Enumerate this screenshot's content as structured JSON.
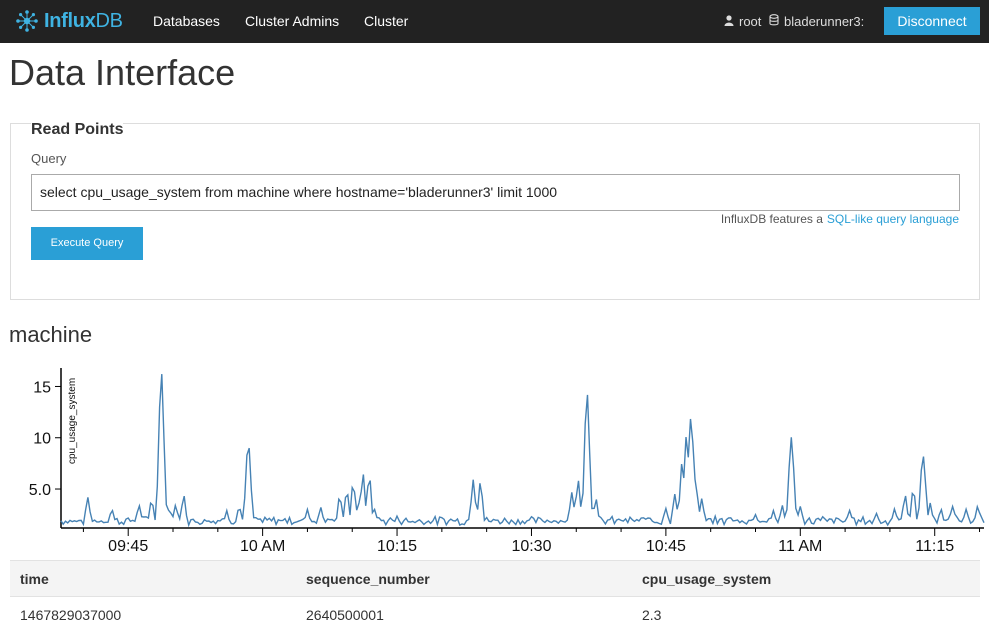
{
  "app": {
    "brand": "InfluxDB",
    "brand_bold": "Influx",
    "brand_light": "DB",
    "accent_color": "#2a9fd6"
  },
  "nav": {
    "links": [
      "Databases",
      "Cluster Admins",
      "Cluster"
    ],
    "user": "root",
    "user_icon": "user-icon",
    "database": "bladerunner3:",
    "database_icon": "database-icon",
    "disconnect_label": "Disconnect"
  },
  "page": {
    "title": "Data Interface"
  },
  "read_points": {
    "title": "Read Points",
    "query_label": "Query",
    "query_value": "select cpu_usage_system from machine where hostname='bladerunner3' limit 1000",
    "help_prefix": "InfluxDB features a",
    "help_link": "SQL-like query language",
    "execute_label": "Execute Query"
  },
  "series": {
    "name": "machine"
  },
  "chart_data": {
    "type": "line",
    "ylabel": "cpu_usage_system",
    "yticks": [
      "5.0",
      "10",
      "15"
    ],
    "ytick_values": [
      5,
      10,
      15
    ],
    "ylim": [
      1.2,
      16.8
    ],
    "xticks": [
      "09:45",
      "10 AM",
      "10:15",
      "10:30",
      "10:45",
      "11 AM",
      "11:15"
    ],
    "xtick_minutes": [
      585,
      600,
      615,
      630,
      645,
      660,
      675
    ],
    "xlim_minutes": [
      577.5,
      680.5
    ],
    "series_color": "#4682b4",
    "peaks": [
      {
        "t": 580.5,
        "v": 4.2
      },
      {
        "t": 583.2,
        "v": 3.0
      },
      {
        "t": 586.2,
        "v": 3.5
      },
      {
        "t": 587.6,
        "v": 4.0
      },
      {
        "t": 588.7,
        "v": 16.5
      },
      {
        "t": 589.6,
        "v": 3.0
      },
      {
        "t": 590.3,
        "v": 3.5
      },
      {
        "t": 591.2,
        "v": 4.3
      },
      {
        "t": 593.8,
        "v": 2.0
      },
      {
        "t": 596.0,
        "v": 2.8
      },
      {
        "t": 597.4,
        "v": 3.2
      },
      {
        "t": 598.4,
        "v": 9.4
      },
      {
        "t": 602.5,
        "v": 2.1
      },
      {
        "t": 605.0,
        "v": 3.0
      },
      {
        "t": 606.5,
        "v": 3.2
      },
      {
        "t": 607.3,
        "v": 2.2
      },
      {
        "t": 608.6,
        "v": 4.3
      },
      {
        "t": 609.4,
        "v": 4.8
      },
      {
        "t": 610.1,
        "v": 5.5
      },
      {
        "t": 610.7,
        "v": 3.8
      },
      {
        "t": 611.2,
        "v": 6.5
      },
      {
        "t": 611.9,
        "v": 6.3
      },
      {
        "t": 612.5,
        "v": 3.0
      },
      {
        "t": 615.0,
        "v": 2.4
      },
      {
        "t": 618.5,
        "v": 1.9
      },
      {
        "t": 621.0,
        "v": 2.1
      },
      {
        "t": 623.5,
        "v": 6.0
      },
      {
        "t": 624.3,
        "v": 5.7
      },
      {
        "t": 627.0,
        "v": 2.1
      },
      {
        "t": 630.0,
        "v": 1.9
      },
      {
        "t": 632.5,
        "v": 2.0
      },
      {
        "t": 634.5,
        "v": 4.8
      },
      {
        "t": 635.2,
        "v": 6.0
      },
      {
        "t": 636.2,
        "v": 14.5
      },
      {
        "t": 637.2,
        "v": 4.0
      },
      {
        "t": 640.0,
        "v": 2.0
      },
      {
        "t": 643.0,
        "v": 2.1
      },
      {
        "t": 645.0,
        "v": 3.2
      },
      {
        "t": 646.0,
        "v": 4.5
      },
      {
        "t": 646.8,
        "v": 7.6
      },
      {
        "t": 647.3,
        "v": 10.2
      },
      {
        "t": 647.8,
        "v": 12.1
      },
      {
        "t": 648.3,
        "v": 6.0
      },
      {
        "t": 649.0,
        "v": 4.0
      },
      {
        "t": 652.0,
        "v": 2.1
      },
      {
        "t": 655.0,
        "v": 2.6
      },
      {
        "t": 657.0,
        "v": 3.0
      },
      {
        "t": 658.0,
        "v": 3.3
      },
      {
        "t": 659.0,
        "v": 10.0
      },
      {
        "t": 660.0,
        "v": 3.2
      },
      {
        "t": 662.5,
        "v": 2.3
      },
      {
        "t": 665.5,
        "v": 2.8
      },
      {
        "t": 668.5,
        "v": 2.6
      },
      {
        "t": 670.5,
        "v": 3.0
      },
      {
        "t": 671.7,
        "v": 4.3
      },
      {
        "t": 672.6,
        "v": 5.0
      },
      {
        "t": 673.7,
        "v": 8.4
      },
      {
        "t": 674.5,
        "v": 3.6
      },
      {
        "t": 675.7,
        "v": 3.0
      },
      {
        "t": 677.0,
        "v": 3.4
      },
      {
        "t": 678.5,
        "v": 3.0
      },
      {
        "t": 679.8,
        "v": 3.2
      }
    ]
  },
  "results": {
    "columns": [
      "time",
      "sequence_number",
      "cpu_usage_system"
    ],
    "rows": [
      [
        "1467829037000",
        "2640500001",
        "2.3"
      ]
    ]
  }
}
